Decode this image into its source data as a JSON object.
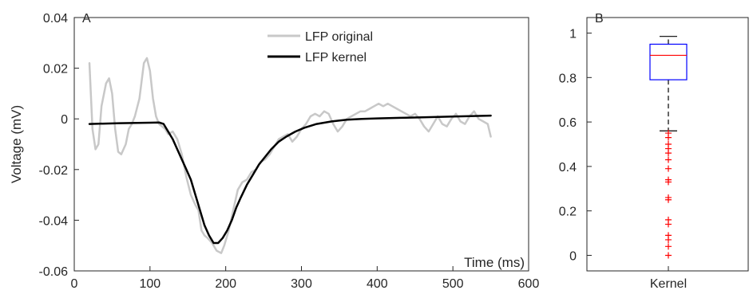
{
  "chart_data": [
    {
      "type": "line",
      "panel_label": "A",
      "xlabel": "Time (ms)",
      "ylabel": "Voltage (mV)",
      "xlim": [
        0,
        600
      ],
      "ylim": [
        -0.06,
        0.04
      ],
      "xticks": [
        0,
        100,
        200,
        300,
        400,
        500,
        600
      ],
      "xtick_labels": [
        "0",
        "100",
        "200",
        "300",
        "400",
        "500",
        "600"
      ],
      "yticks": [
        -0.06,
        -0.04,
        -0.02,
        0,
        0.02,
        0.04
      ],
      "ytick_labels": [
        "-0.06",
        "-0.04",
        "-0.02",
        "0",
        "0.02",
        "0.04"
      ],
      "grid": false,
      "legend_position": "top-center",
      "series": [
        {
          "name": "LFP original",
          "color": "#c8c8c8",
          "points": [
            [
              20,
              0.022
            ],
            [
              24,
              -0.004
            ],
            [
              28,
              -0.012
            ],
            [
              32,
              -0.01
            ],
            [
              36,
              0.005
            ],
            [
              42,
              0.014
            ],
            [
              46,
              0.016
            ],
            [
              50,
              0.01
            ],
            [
              54,
              -0.004
            ],
            [
              58,
              -0.013
            ],
            [
              62,
              -0.014
            ],
            [
              68,
              -0.01
            ],
            [
              72,
              -0.004
            ],
            [
              76,
              -0.002
            ],
            [
              80,
              0.001
            ],
            [
              86,
              0.008
            ],
            [
              92,
              0.022
            ],
            [
              96,
              0.024
            ],
            [
              100,
              0.019
            ],
            [
              104,
              0.008
            ],
            [
              108,
              0.001
            ],
            [
              112,
              -0.002
            ],
            [
              116,
              -0.003
            ],
            [
              120,
              -0.004
            ],
            [
              124,
              -0.006
            ],
            [
              130,
              -0.005
            ],
            [
              136,
              -0.008
            ],
            [
              142,
              -0.014
            ],
            [
              148,
              -0.023
            ],
            [
              154,
              -0.03
            ],
            [
              160,
              -0.034
            ],
            [
              164,
              -0.036
            ],
            [
              168,
              -0.044
            ],
            [
              172,
              -0.046
            ],
            [
              176,
              -0.047
            ],
            [
              182,
              -0.049
            ],
            [
              188,
              -0.052
            ],
            [
              194,
              -0.053
            ],
            [
              198,
              -0.05
            ],
            [
              204,
              -0.044
            ],
            [
              210,
              -0.036
            ],
            [
              216,
              -0.028
            ],
            [
              222,
              -0.025
            ],
            [
              228,
              -0.024
            ],
            [
              234,
              -0.021
            ],
            [
              240,
              -0.02
            ],
            [
              246,
              -0.017
            ],
            [
              252,
              -0.016
            ],
            [
              258,
              -0.014
            ],
            [
              264,
              -0.011
            ],
            [
              270,
              -0.008
            ],
            [
              276,
              -0.007
            ],
            [
              282,
              -0.006
            ],
            [
              288,
              -0.009
            ],
            [
              294,
              -0.007
            ],
            [
              300,
              -0.004
            ],
            [
              306,
              -0.002
            ],
            [
              312,
              0.001
            ],
            [
              318,
              0.002
            ],
            [
              324,
              0.001
            ],
            [
              330,
              0.003
            ],
            [
              336,
              0.002
            ],
            [
              342,
              -0.002
            ],
            [
              348,
              -0.005
            ],
            [
              354,
              -0.003
            ],
            [
              360,
              0.0
            ],
            [
              366,
              0.001
            ],
            [
              372,
              0.002
            ],
            [
              378,
              0.003
            ],
            [
              384,
              0.003
            ],
            [
              390,
              0.004
            ],
            [
              396,
              0.005
            ],
            [
              402,
              0.006
            ],
            [
              408,
              0.005
            ],
            [
              414,
              0.006
            ],
            [
              420,
              0.005
            ],
            [
              426,
              0.004
            ],
            [
              432,
              0.003
            ],
            [
              438,
              0.002
            ],
            [
              444,
              0.001
            ],
            [
              450,
              0.002
            ],
            [
              456,
              0.0
            ],
            [
              462,
              -0.003
            ],
            [
              468,
              -0.005
            ],
            [
              474,
              -0.002
            ],
            [
              480,
              0.001
            ],
            [
              486,
              -0.002
            ],
            [
              492,
              -0.003
            ],
            [
              498,
              0.0
            ],
            [
              504,
              0.002
            ],
            [
              510,
              -0.001
            ],
            [
              516,
              -0.002
            ],
            [
              522,
              0.001
            ],
            [
              528,
              0.003
            ],
            [
              534,
              0.0
            ],
            [
              540,
              -0.001
            ],
            [
              546,
              -0.002
            ],
            [
              550,
              -0.007
            ]
          ]
        },
        {
          "name": "LFP kernel",
          "color": "#000000",
          "points": [
            [
              20,
              -0.002
            ],
            [
              60,
              -0.0017
            ],
            [
              100,
              -0.0015
            ],
            [
              112,
              -0.0014
            ],
            [
              118,
              -0.002
            ],
            [
              124,
              -0.005
            ],
            [
              130,
              -0.008
            ],
            [
              136,
              -0.012
            ],
            [
              142,
              -0.016
            ],
            [
              148,
              -0.02
            ],
            [
              154,
              -0.024
            ],
            [
              160,
              -0.03
            ],
            [
              166,
              -0.036
            ],
            [
              172,
              -0.042
            ],
            [
              178,
              -0.046
            ],
            [
              184,
              -0.049
            ],
            [
              190,
              -0.049
            ],
            [
              196,
              -0.047
            ],
            [
              202,
              -0.044
            ],
            [
              208,
              -0.04
            ],
            [
              214,
              -0.035
            ],
            [
              220,
              -0.031
            ],
            [
              228,
              -0.026
            ],
            [
              236,
              -0.022
            ],
            [
              244,
              -0.018
            ],
            [
              252,
              -0.015
            ],
            [
              260,
              -0.012
            ],
            [
              270,
              -0.009
            ],
            [
              280,
              -0.007
            ],
            [
              292,
              -0.005
            ],
            [
              304,
              -0.0035
            ],
            [
              320,
              -0.002
            ],
            [
              340,
              -0.001
            ],
            [
              360,
              -0.0003
            ],
            [
              380,
              0.0
            ],
            [
              400,
              0.0002
            ],
            [
              430,
              0.0004
            ],
            [
              460,
              0.0006
            ],
            [
              500,
              0.0009
            ],
            [
              550,
              0.0013
            ]
          ]
        }
      ]
    },
    {
      "type": "box",
      "panel_label": "B",
      "categories": [
        "Kernel"
      ],
      "ylim": [
        -0.07,
        1.07
      ],
      "yticks": [
        0,
        0.2,
        0.4,
        0.6,
        0.8,
        1
      ],
      "ytick_labels": [
        "0",
        "0.2",
        "0.4",
        "0.6",
        "0.8",
        "1"
      ],
      "box": {
        "whisker_low": 0.56,
        "q1": 0.79,
        "median": 0.9,
        "q3": 0.95,
        "whisker_high": 0.985,
        "outliers": [
          0.55,
          0.53,
          0.5,
          0.48,
          0.46,
          0.43,
          0.39,
          0.34,
          0.33,
          0.26,
          0.25,
          0.16,
          0.14,
          0.09,
          0.07,
          0.04,
          0.0
        ]
      },
      "colors": {
        "box": "#0000ff",
        "median": "#ff0000",
        "whisker": "#000000",
        "outlier": "#ff0000"
      }
    }
  ]
}
